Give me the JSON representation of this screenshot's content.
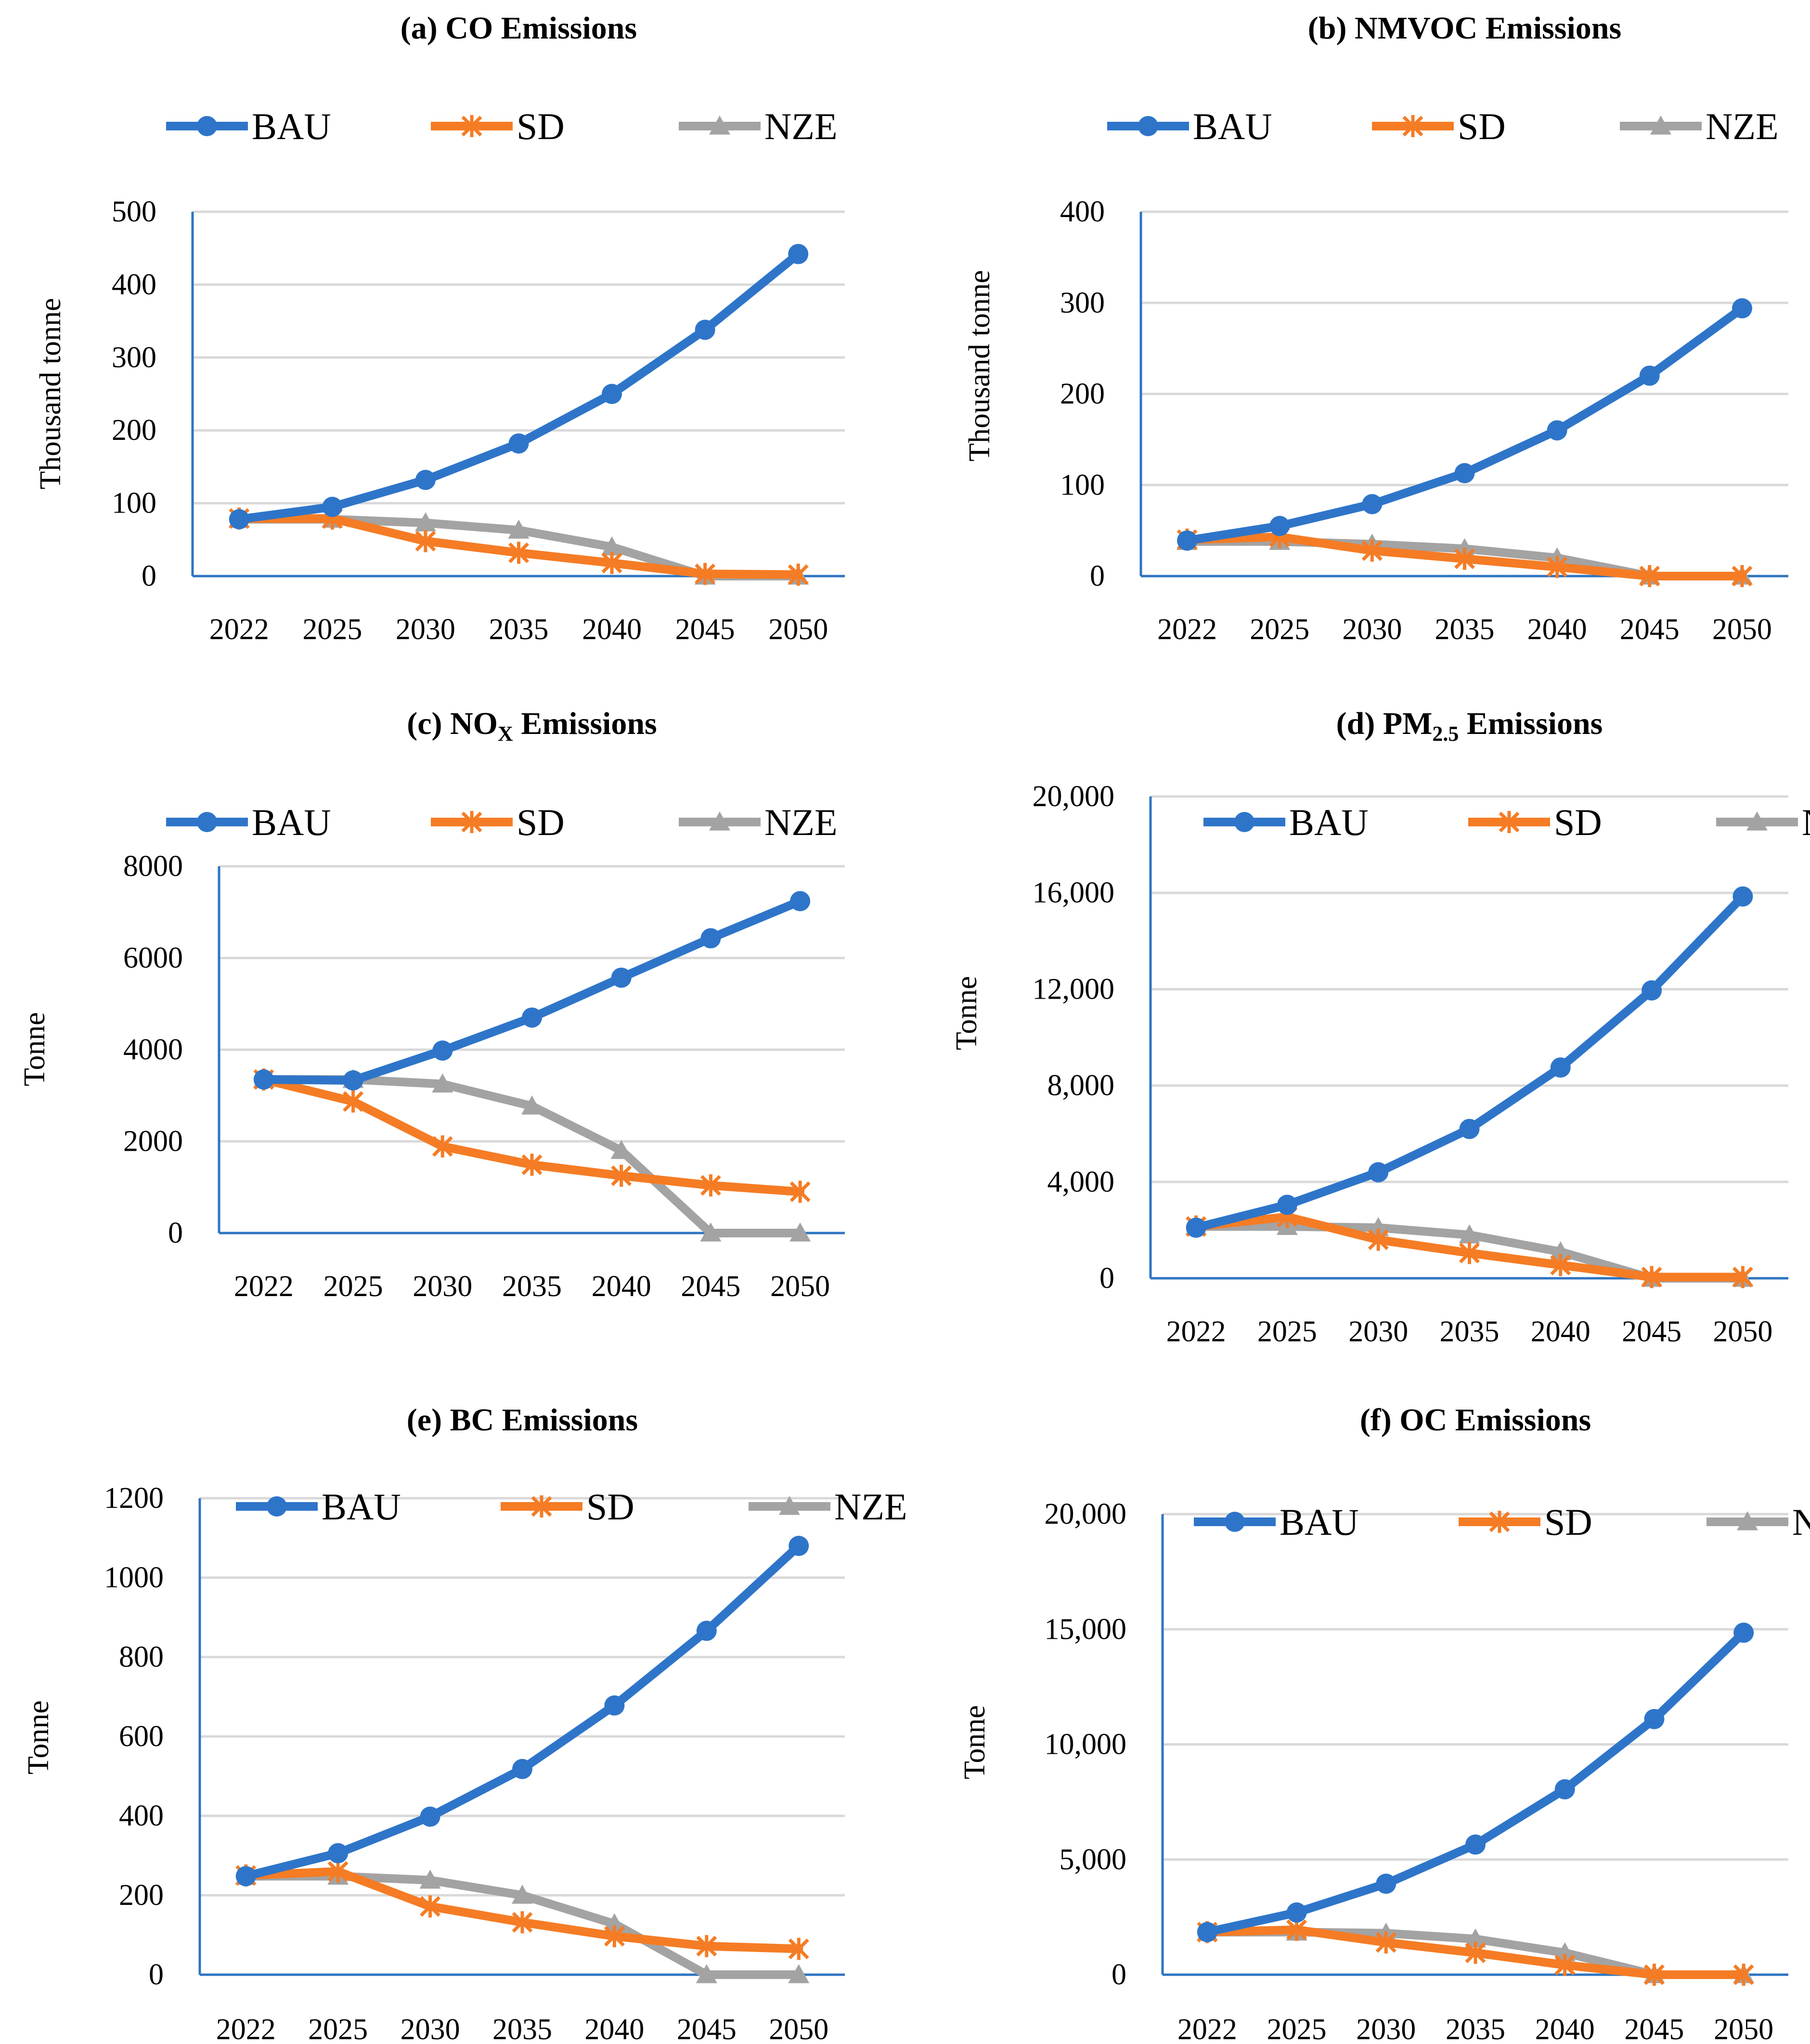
{
  "colors": {
    "BAU": "#2e75c9",
    "SD": "#f57c24",
    "NZE": "#a3a3a3"
  },
  "chart_data": [
    {
      "type": "line",
      "title_prefix": "(a)",
      "title_main": "CO Emissions",
      "ylabel": "Thousand tonne",
      "ylim": [
        0,
        500
      ],
      "yticks": [
        "0",
        "100",
        "200",
        "300",
        "400",
        "500"
      ],
      "categories": [
        "2022",
        "2025",
        "2030",
        "2035",
        "2040",
        "2045",
        "2050"
      ],
      "series": [
        {
          "name": "BAU",
          "values": [
            78,
            95,
            132,
            182,
            250,
            338,
            442
          ]
        },
        {
          "name": "SD",
          "values": [
            79,
            79,
            48,
            32,
            18,
            3,
            2
          ]
        },
        {
          "name": "NZE",
          "values": [
            78,
            78,
            73,
            63,
            40,
            0,
            0
          ]
        }
      ]
    },
    {
      "type": "line",
      "title_prefix": "(b)",
      "title_main": "NMVOC Emissions",
      "ylabel": "Thousand tonne",
      "ylim": [
        0,
        400
      ],
      "yticks": [
        "0",
        "100",
        "200",
        "300",
        "400"
      ],
      "categories": [
        "2022",
        "2025",
        "2030",
        "2035",
        "2040",
        "2045",
        "2050"
      ],
      "series": [
        {
          "name": "BAU",
          "values": [
            39,
            55,
            79,
            113,
            160,
            220,
            294
          ]
        },
        {
          "name": "SD",
          "values": [
            40,
            43,
            28,
            19,
            10,
            0,
            0
          ]
        },
        {
          "name": "NZE",
          "values": [
            38,
            38,
            35,
            30,
            20,
            0,
            0
          ]
        }
      ]
    },
    {
      "type": "line",
      "title_prefix": "(c)",
      "title_main": "NO",
      "title_sub": "X",
      "title_rest": " Emissions",
      "ylabel": "Tonne",
      "ylim": [
        0,
        8000
      ],
      "yticks": [
        "0",
        "2000",
        "4000",
        "6000",
        "8000"
      ],
      "categories": [
        "2022",
        "2025",
        "2030",
        "2035",
        "2040",
        "2045",
        "2050"
      ],
      "series": [
        {
          "name": "BAU",
          "values": [
            3350,
            3330,
            3980,
            4700,
            5570,
            6430,
            7240
          ]
        },
        {
          "name": "SD",
          "values": [
            3350,
            2870,
            1890,
            1490,
            1250,
            1040,
            900
          ]
        },
        {
          "name": "NZE",
          "values": [
            3350,
            3350,
            3250,
            2770,
            1800,
            0,
            0
          ]
        }
      ]
    },
    {
      "type": "line",
      "title_prefix": "(d)",
      "title_main": "PM",
      "title_sub": "2.5",
      "title_rest": " Emissions",
      "ylabel": "Tonne",
      "ylim": [
        0,
        20000
      ],
      "yticks": [
        "0",
        "4,000",
        "8,000",
        "12,000",
        "16,000",
        "20,000"
      ],
      "categories": [
        "2022",
        "2025",
        "2030",
        "2035",
        "2040",
        "2045",
        "2050"
      ],
      "series": [
        {
          "name": "BAU",
          "values": [
            2100,
            3050,
            4400,
            6200,
            8750,
            11950,
            15850
          ]
        },
        {
          "name": "SD",
          "values": [
            2150,
            2550,
            1600,
            1050,
            550,
            50,
            50
          ]
        },
        {
          "name": "NZE",
          "values": [
            2150,
            2150,
            2100,
            1800,
            1100,
            0,
            0
          ]
        }
      ]
    },
    {
      "type": "line",
      "title_prefix": "(e)",
      "title_main": "BC Emissions",
      "ylabel": "Tonne",
      "ylim": [
        0,
        1200
      ],
      "yticks": [
        "0",
        "200",
        "400",
        "600",
        "800",
        "1000",
        "1200"
      ],
      "categories": [
        "2022",
        "2025",
        "2030",
        "2035",
        "2040",
        "2045",
        "2050"
      ],
      "series": [
        {
          "name": "BAU",
          "values": [
            248,
            306,
            398,
            518,
            678,
            866,
            1080
          ]
        },
        {
          "name": "SD",
          "values": [
            250,
            260,
            172,
            132,
            97,
            72,
            65
          ]
        },
        {
          "name": "NZE",
          "values": [
            248,
            248,
            238,
            200,
            128,
            0,
            0
          ]
        }
      ]
    },
    {
      "type": "line",
      "title_prefix": "(f)",
      "title_main": "OC Emissions",
      "ylabel": "Tonne",
      "ylim": [
        0,
        20000
      ],
      "yticks": [
        "0",
        "5,000",
        "10,000",
        "15,000",
        "20,000"
      ],
      "categories": [
        "2022",
        "2025",
        "2030",
        "2035",
        "2040",
        "2045",
        "2050"
      ],
      "series": [
        {
          "name": "BAU",
          "values": [
            1850,
            2700,
            3950,
            5650,
            8050,
            11100,
            14850
          ]
        },
        {
          "name": "SD",
          "values": [
            1850,
            1950,
            1400,
            950,
            420,
            0,
            0
          ]
        },
        {
          "name": "NZE",
          "values": [
            1850,
            1850,
            1800,
            1550,
            950,
            0,
            0
          ]
        }
      ]
    }
  ]
}
